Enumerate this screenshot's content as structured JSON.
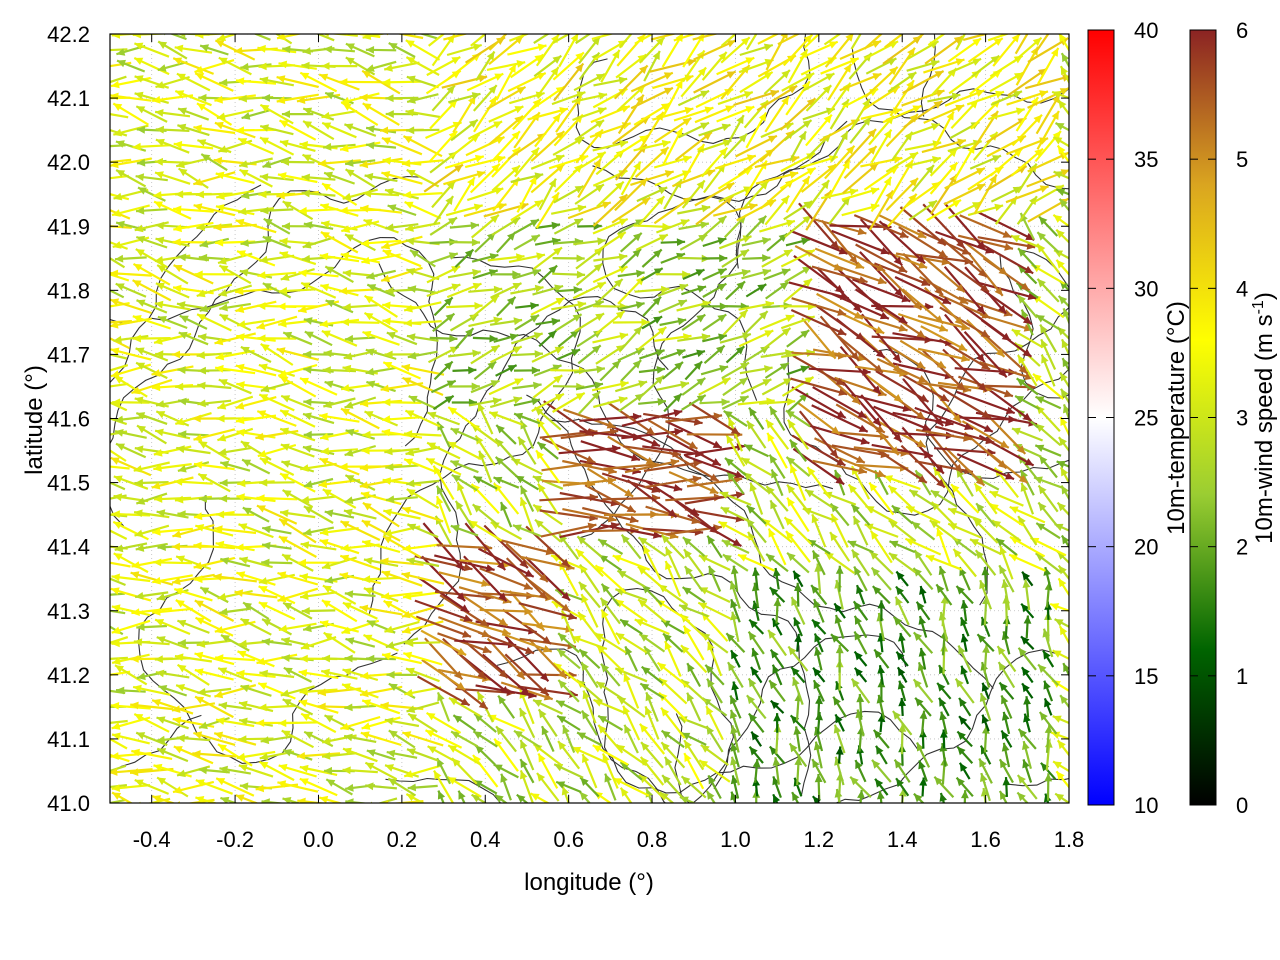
{
  "chart_data": {
    "type": "vector-field",
    "xlabel": "longitude (°)",
    "ylabel": "latitude (°)",
    "xlim": [
      -0.5,
      1.8
    ],
    "ylim": [
      41.0,
      42.2
    ],
    "xticks": [
      "-0.4",
      "-0.2",
      "0.0",
      "0.2",
      "0.4",
      "0.6",
      "0.8",
      "1.0",
      "1.2",
      "1.4",
      "1.6",
      "1.8"
    ],
    "xtick_values": [
      -0.4,
      -0.2,
      0.0,
      0.2,
      0.4,
      0.6,
      0.8,
      1.0,
      1.2,
      1.4,
      1.6,
      1.8
    ],
    "yticks": [
      "41.0",
      "41.1",
      "41.2",
      "41.3",
      "41.4",
      "41.5",
      "41.6",
      "41.7",
      "41.8",
      "41.9",
      "42.0",
      "42.1",
      "42.2"
    ],
    "ytick_values": [
      41.0,
      41.1,
      41.2,
      41.3,
      41.4,
      41.5,
      41.6,
      41.7,
      41.8,
      41.9,
      42.0,
      42.1,
      42.2
    ],
    "grid": true,
    "colorbars": [
      {
        "label": "10m-temperature (°C)",
        "range": [
          10,
          40
        ],
        "ticks": [
          "10",
          "15",
          "20",
          "25",
          "30",
          "35",
          "40"
        ],
        "tick_values": [
          10,
          15,
          20,
          25,
          30,
          35,
          40
        ],
        "colors": [
          "#0000ff",
          "#ffffff",
          "#ff0000"
        ]
      },
      {
        "label": "10m-wind speed (m s-1)",
        "label_main": "10m-wind speed (m s",
        "label_sup": "-1",
        "label_end": ")",
        "range": [
          0,
          6
        ],
        "ticks": [
          "0",
          "1",
          "2",
          "3",
          "4",
          "5",
          "6"
        ],
        "tick_values": [
          0,
          1,
          2,
          3,
          4,
          5,
          6
        ],
        "colors": [
          "#000000",
          "#006400",
          "#9acd32",
          "#ffff00",
          "#daa520",
          "#8b2323"
        ]
      }
    ],
    "wind_regions": [
      {
        "lon": [
          -0.5,
          0.25
        ],
        "lat": [
          41.0,
          42.2
        ],
        "u": -0.9,
        "v": 0.12,
        "speed": 3.2
      },
      {
        "lon": [
          0.25,
          0.55
        ],
        "lat": [
          41.15,
          41.4
        ],
        "u": 0.9,
        "v": -0.45,
        "speed": 5.6
      },
      {
        "lon": [
          0.55,
          1.0
        ],
        "lat": [
          41.4,
          41.6
        ],
        "u": 0.95,
        "v": -0.2,
        "speed": 5.8
      },
      {
        "lon": [
          1.2,
          1.7
        ],
        "lat": [
          41.5,
          41.9
        ],
        "u": 0.9,
        "v": -0.45,
        "speed": 5.7
      },
      {
        "lon": [
          1.0,
          1.8
        ],
        "lat": [
          41.0,
          41.35
        ],
        "u": -0.3,
        "v": 0.8,
        "speed": 1.8
      },
      {
        "lon": [
          0.25,
          1.2
        ],
        "lat": [
          41.6,
          41.9
        ],
        "u": 0.7,
        "v": 0.3,
        "speed": 2.5
      },
      {
        "lon": [
          0.25,
          1.8
        ],
        "lat": [
          41.9,
          42.2
        ],
        "u": 0.6,
        "v": 0.45,
        "speed": 3.6
      }
    ]
  }
}
